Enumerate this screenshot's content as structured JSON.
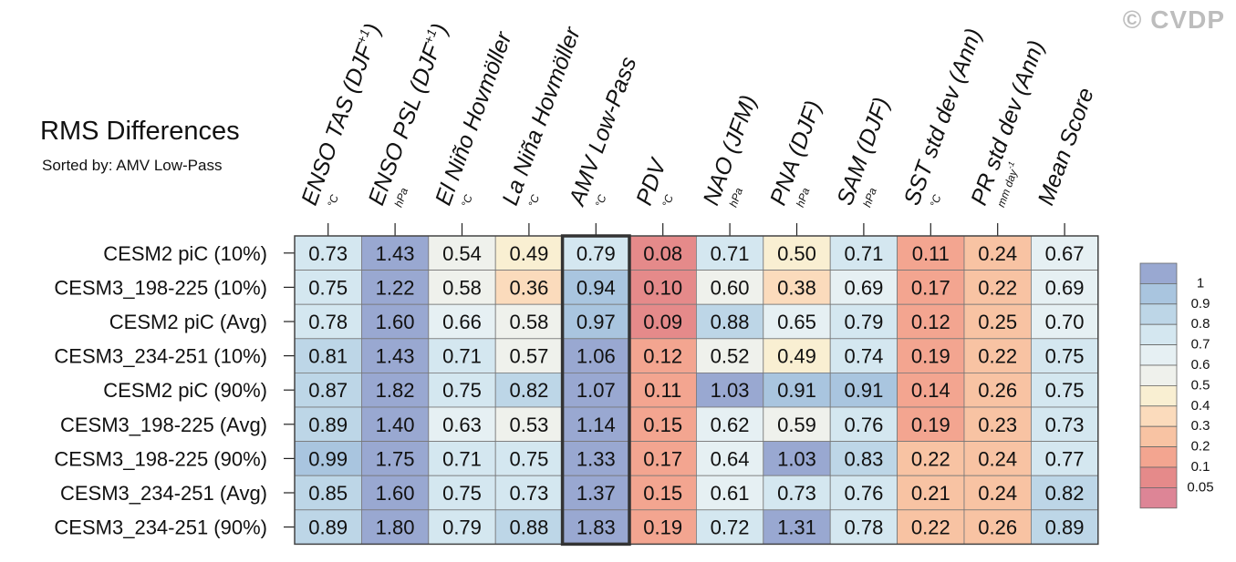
{
  "watermark": "© CVDP",
  "title": "RMS Differences",
  "subtitle": "Sorted by: AMV Low-Pass",
  "chart_data": {
    "type": "heatmap",
    "columns": [
      {
        "label": "ENSO TAS (DJF",
        "sup": "+1",
        "close": ")",
        "unit": "°C"
      },
      {
        "label": "ENSO PSL (DJF",
        "sup": "+1",
        "close": ")",
        "unit": "hPa"
      },
      {
        "label": "El Niño Hovmöller",
        "sup": "",
        "close": "",
        "unit": "°C"
      },
      {
        "label": "La Niña Hovmöller",
        "sup": "",
        "close": "",
        "unit": "°C"
      },
      {
        "label": "AMV Low-Pass",
        "sup": "",
        "close": "",
        "unit": "°C"
      },
      {
        "label": "PDV",
        "sup": "",
        "close": "",
        "unit": "°C"
      },
      {
        "label": "NAO (JFM)",
        "sup": "",
        "close": "",
        "unit": "hPa"
      },
      {
        "label": "PNA (DJF)",
        "sup": "",
        "close": "",
        "unit": "hPa"
      },
      {
        "label": "SAM (DJF)",
        "sup": "",
        "close": "",
        "unit": "hPa"
      },
      {
        "label": "SST std dev (Ann)",
        "sup": "",
        "close": "",
        "unit": "°C"
      },
      {
        "label": "PR std dev (Ann)",
        "sup": "",
        "close": "",
        "unit": "mm day",
        "unit_sup": "-1"
      },
      {
        "label": "Mean Score",
        "sup": "",
        "close": "",
        "unit": ""
      }
    ],
    "rows": [
      "CESM2 piC (10%)",
      "CESM3_198-225 (10%)",
      "CESM2 piC (Avg)",
      "CESM3_234-251 (10%)",
      "CESM2 piC (90%)",
      "CESM3_198-225 (Avg)",
      "CESM3_198-225 (90%)",
      "CESM3_234-251 (Avg)",
      "CESM3_234-251 (90%)"
    ],
    "values": [
      [
        0.73,
        1.43,
        0.54,
        0.49,
        0.79,
        0.08,
        0.71,
        0.5,
        0.71,
        0.11,
        0.24,
        0.67
      ],
      [
        0.75,
        1.22,
        0.58,
        0.36,
        0.94,
        0.1,
        0.6,
        0.38,
        0.69,
        0.17,
        0.22,
        0.69
      ],
      [
        0.78,
        1.6,
        0.66,
        0.58,
        0.97,
        0.09,
        0.88,
        0.65,
        0.79,
        0.12,
        0.25,
        0.7
      ],
      [
        0.81,
        1.43,
        0.71,
        0.57,
        1.06,
        0.12,
        0.52,
        0.49,
        0.74,
        0.19,
        0.22,
        0.75
      ],
      [
        0.87,
        1.82,
        0.75,
        0.82,
        1.07,
        0.11,
        1.03,
        0.91,
        0.91,
        0.14,
        0.26,
        0.75
      ],
      [
        0.89,
        1.4,
        0.63,
        0.53,
        1.14,
        0.15,
        0.62,
        0.59,
        0.76,
        0.19,
        0.23,
        0.73
      ],
      [
        0.99,
        1.75,
        0.71,
        0.75,
        1.33,
        0.17,
        0.64,
        1.03,
        0.83,
        0.22,
        0.24,
        0.77
      ],
      [
        0.85,
        1.6,
        0.75,
        0.73,
        1.37,
        0.15,
        0.61,
        0.73,
        0.76,
        0.21,
        0.24,
        0.82
      ],
      [
        0.89,
        1.8,
        0.79,
        0.88,
        1.83,
        0.19,
        0.72,
        1.31,
        0.78,
        0.22,
        0.26,
        0.89
      ]
    ],
    "cell_text": [
      [
        "0.73",
        "1.43",
        "0.54",
        "0.49",
        "0.79",
        "0.08",
        "0.71",
        "0.50",
        "0.71",
        "0.11",
        "0.24",
        "0.67"
      ],
      [
        "0.75",
        "1.22",
        "0.58",
        "0.36",
        "0.94",
        "0.10",
        "0.60",
        "0.38",
        "0.69",
        "0.17",
        "0.22",
        "0.69"
      ],
      [
        "0.78",
        "1.60",
        "0.66",
        "0.58",
        "0.97",
        "0.09",
        "0.88",
        "0.65",
        "0.79",
        "0.12",
        "0.25",
        "0.70"
      ],
      [
        "0.81",
        "1.43",
        "0.71",
        "0.57",
        "1.06",
        "0.12",
        "0.52",
        "0.49",
        "0.74",
        "0.19",
        "0.22",
        "0.75"
      ],
      [
        "0.87",
        "1.82",
        "0.75",
        "0.82",
        "1.07",
        "0.11",
        "1.03",
        "0.91",
        "0.91",
        "0.14",
        "0.26",
        "0.75"
      ],
      [
        "0.89",
        "1.40",
        "0.63",
        "0.53",
        "1.14",
        "0.15",
        "0.62",
        "0.59",
        "0.76",
        "0.19",
        "0.23",
        "0.73"
      ],
      [
        "0.99",
        "1.75",
        "0.71",
        "0.75",
        "1.33",
        "0.17",
        "0.64",
        "1.03",
        "0.83",
        "0.22",
        "0.24",
        "0.77"
      ],
      [
        "0.85",
        "1.60",
        "0.75",
        "0.73",
        "1.37",
        "0.15",
        "0.61",
        "0.73",
        "0.76",
        "0.21",
        "0.24",
        "0.82"
      ],
      [
        "0.89",
        "1.80",
        "0.79",
        "0.88",
        "1.83",
        "0.19",
        "0.72",
        "1.31",
        "0.78",
        "0.22",
        "0.26",
        "0.89"
      ]
    ],
    "highlight_column": "AMV Low-Pass",
    "colorbar": {
      "labels": [
        "1",
        "0.9",
        "0.8",
        "0.7",
        "0.6",
        "0.5",
        "0.4",
        "0.3",
        "0.2",
        "0.1",
        "0.05"
      ],
      "levels": [
        0.05,
        0.1,
        0.2,
        0.3,
        0.4,
        0.5,
        0.6,
        0.7,
        0.8,
        0.9,
        1.0
      ],
      "colors": [
        "#99a8d1",
        "#a9c5df",
        "#bdd6e7",
        "#d4e7f0",
        "#e6f0f3",
        "#eff1ec",
        "#f9efd2",
        "#fbdbbc",
        "#f8c3a3",
        "#f3a590",
        "#e58a8a",
        "#dd8596"
      ]
    }
  }
}
